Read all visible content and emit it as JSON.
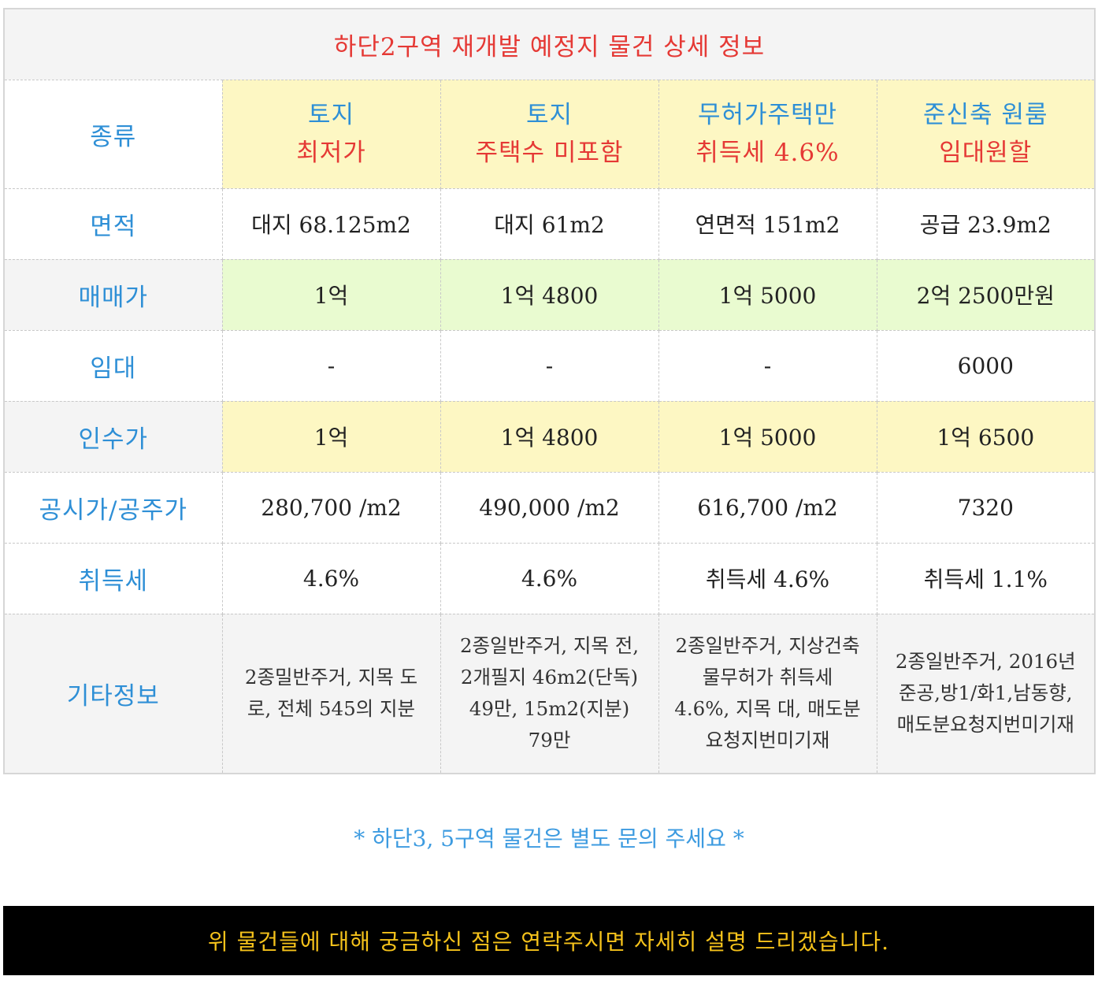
{
  "title": "하단2구역 재개발 예정지 물건 상세 정보",
  "rows": {
    "type": {
      "label": "종류",
      "cells": [
        {
          "line1": "토지",
          "line2": "최저가"
        },
        {
          "line1": "토지",
          "line2": "주택수 미포함"
        },
        {
          "line1": "무허가주택만",
          "line2": "취득세 4.6%"
        },
        {
          "line1": "준신축 원룸",
          "line2": "임대원할"
        }
      ]
    },
    "area": {
      "label": "면적",
      "values": [
        "대지 68.125m2",
        "대지 61m2",
        "연면적 151m2",
        "공급 23.9m2"
      ]
    },
    "price": {
      "label": "매매가",
      "values": [
        "1억",
        "1억 4800",
        "1억 5000",
        "2억 2500만원"
      ]
    },
    "rent": {
      "label": "임대",
      "values": [
        "-",
        "-",
        "-",
        "6000"
      ]
    },
    "takeover": {
      "label": "인수가",
      "values": [
        "1억",
        "1억 4800",
        "1억 5000",
        "1억 6500"
      ]
    },
    "official": {
      "label": "공시가/공주가",
      "values": [
        "280,700 /m2",
        "490,000 /m2",
        "616,700 /m2",
        "7320"
      ]
    },
    "tax": {
      "label": "취득세",
      "values": [
        "4.6%",
        "4.6%",
        "취득세 4.6%",
        "취득세 1.1%"
      ]
    },
    "etc": {
      "label": "기타정보",
      "values": [
        "2종밀반주거, 지목 도로, 전체 545의 지분",
        "2종일반주거, 지목 전, 2개필지 46m2(단독) 49만, 15m2(지분) 79만",
        "2종일반주거, 지상건축물무허가 취득세 4.6%, 지목 대, 매도분요청지번미기재",
        "2종일반주거, 2016년준공,방1/화1,남동향,매도분요청지번미기재"
      ]
    }
  },
  "note": "* 하단3, 5구역 물건은 별도 문의 주세요 *",
  "contact": "위 물건들에 대해 궁금하신 점은 연락주시면 자세히 설명 드리겠습니다.",
  "colors": {
    "title_red": "#e53935",
    "label_blue": "#2e8fd6",
    "highlight_yellow": "#fdf7c3",
    "highlight_green": "#e9fbd0",
    "contact_gold": "#f5c21b"
  }
}
